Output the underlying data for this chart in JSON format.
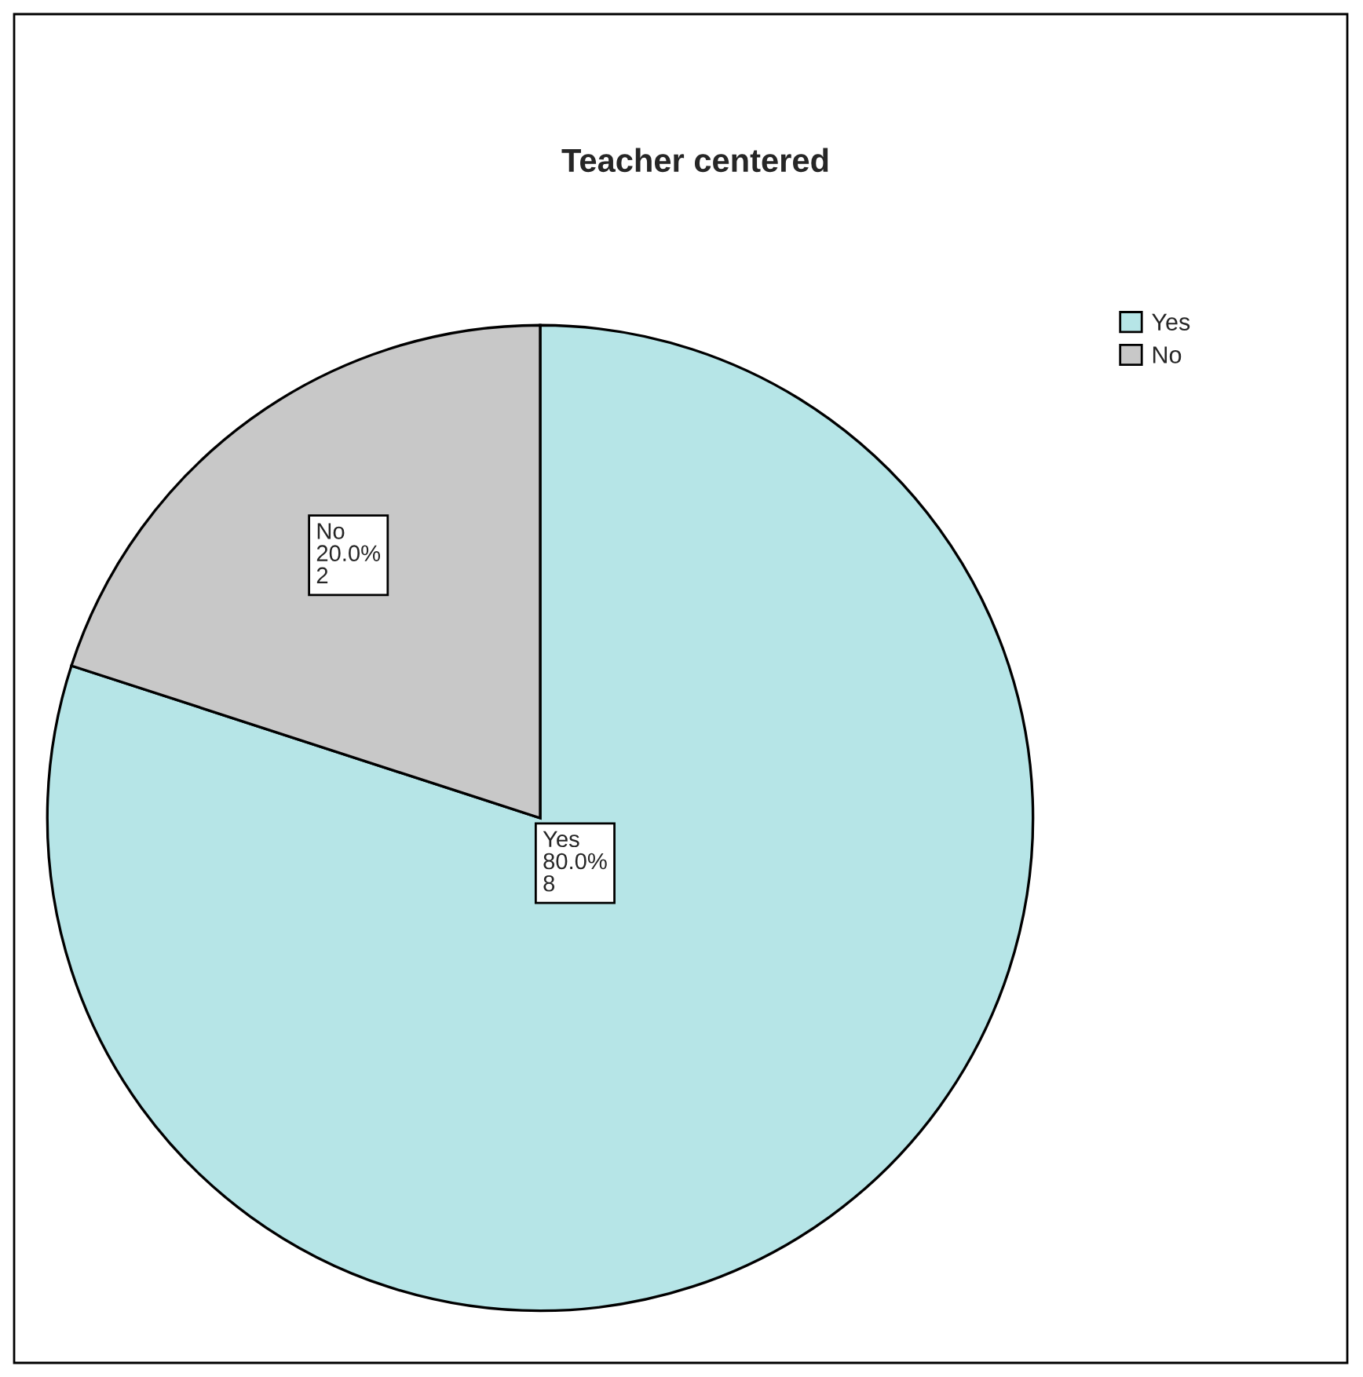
{
  "chart_data": {
    "type": "pie",
    "title": "Teacher centered",
    "categories": [
      "Yes",
      "No"
    ],
    "values": [
      80,
      20
    ],
    "value_labels": [
      "80.0%\n8",
      "20.0%\n2"
    ],
    "colors": [
      "#b6e5e7",
      "#c8c8c8"
    ],
    "legend": "top right"
  }
}
